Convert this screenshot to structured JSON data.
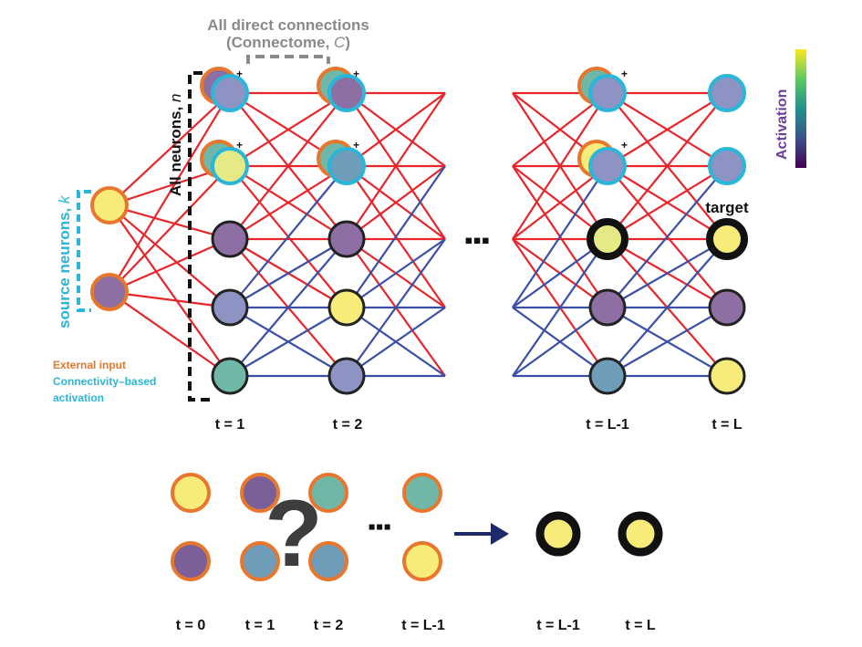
{
  "header": {
    "line1": "All direct connections",
    "line2_prefix": "(Connectome, ",
    "line2_symbol": "C",
    "line2_suffix": ")"
  },
  "all_neurons": {
    "label": "All neurons, ",
    "symbol": "n"
  },
  "source_neurons": {
    "label": "source neurons, ",
    "symbol": "k"
  },
  "legend": {
    "external_input": "External input",
    "connectivity_line1": "Connectivity–based",
    "connectivity_line2": "activation",
    "external_color": "#E8762C",
    "connectivity_color": "#29B6D8"
  },
  "colorbar": {
    "label": "Activation",
    "stops": [
      "#440154",
      "#3b528b",
      "#21918c",
      "#5ec962",
      "#fde725"
    ]
  },
  "target_label": "target",
  "plus_sign": "+",
  "ellipsis_main": "▪▪▪",
  "ellipsis_bottom": "▪▪▪",
  "question_mark": "?",
  "time_labels_top": [
    "t = 1",
    "t = 2",
    "t = L-1",
    "t = L"
  ],
  "time_labels_bottom": [
    "t = 0",
    "t = 1",
    "t = 2",
    "t = L-1",
    "t = L-1",
    "t = L"
  ],
  "edge_colors": {
    "excitatory": "#E8252A",
    "inhibitory": "#3A4FA8"
  },
  "neuron_colors": {
    "yellow": "#F7EC7A",
    "purple": "#8E6FA3",
    "lavender": "#8D94C4",
    "teal": "#6FB8A8",
    "blueteal": "#6F9CB8",
    "lightyellow": "#E6EA86",
    "deeppurple": "#7B5F99"
  }
}
